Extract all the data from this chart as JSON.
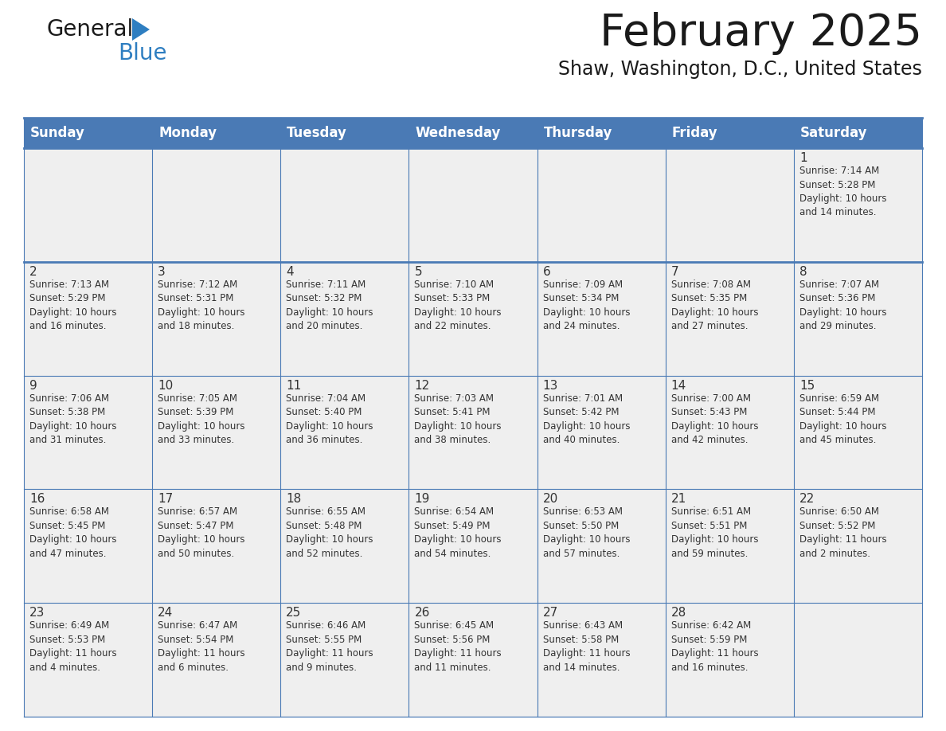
{
  "title": "February 2025",
  "subtitle": "Shaw, Washington, D.C., United States",
  "days_of_week": [
    "Sunday",
    "Monday",
    "Tuesday",
    "Wednesday",
    "Thursday",
    "Friday",
    "Saturday"
  ],
  "header_bg": "#4a7ab5",
  "header_text": "#ffffff",
  "cell_bg_gray": "#efefef",
  "cell_bg_white": "#ffffff",
  "border_color": "#4a7ab5",
  "day_num_color": "#333333",
  "text_color": "#333333",
  "title_color": "#1a1a1a",
  "logo_general_color": "#1a1a1a",
  "logo_blue_color": "#2e7ec1",
  "logo_triangle_color": "#2e7ec1",
  "calendar": [
    [
      null,
      null,
      null,
      null,
      null,
      null,
      1
    ],
    [
      2,
      3,
      4,
      5,
      6,
      7,
      8
    ],
    [
      9,
      10,
      11,
      12,
      13,
      14,
      15
    ],
    [
      16,
      17,
      18,
      19,
      20,
      21,
      22
    ],
    [
      23,
      24,
      25,
      26,
      27,
      28,
      null
    ]
  ],
  "cell_data": {
    "1": {
      "sunrise": "7:14 AM",
      "sunset": "5:28 PM",
      "daylight": "10 hours and 14 minutes."
    },
    "2": {
      "sunrise": "7:13 AM",
      "sunset": "5:29 PM",
      "daylight": "10 hours and 16 minutes."
    },
    "3": {
      "sunrise": "7:12 AM",
      "sunset": "5:31 PM",
      "daylight": "10 hours and 18 minutes."
    },
    "4": {
      "sunrise": "7:11 AM",
      "sunset": "5:32 PM",
      "daylight": "10 hours and 20 minutes."
    },
    "5": {
      "sunrise": "7:10 AM",
      "sunset": "5:33 PM",
      "daylight": "10 hours and 22 minutes."
    },
    "6": {
      "sunrise": "7:09 AM",
      "sunset": "5:34 PM",
      "daylight": "10 hours and 24 minutes."
    },
    "7": {
      "sunrise": "7:08 AM",
      "sunset": "5:35 PM",
      "daylight": "10 hours and 27 minutes."
    },
    "8": {
      "sunrise": "7:07 AM",
      "sunset": "5:36 PM",
      "daylight": "10 hours and 29 minutes."
    },
    "9": {
      "sunrise": "7:06 AM",
      "sunset": "5:38 PM",
      "daylight": "10 hours and 31 minutes."
    },
    "10": {
      "sunrise": "7:05 AM",
      "sunset": "5:39 PM",
      "daylight": "10 hours and 33 minutes."
    },
    "11": {
      "sunrise": "7:04 AM",
      "sunset": "5:40 PM",
      "daylight": "10 hours and 36 minutes."
    },
    "12": {
      "sunrise": "7:03 AM",
      "sunset": "5:41 PM",
      "daylight": "10 hours and 38 minutes."
    },
    "13": {
      "sunrise": "7:01 AM",
      "sunset": "5:42 PM",
      "daylight": "10 hours and 40 minutes."
    },
    "14": {
      "sunrise": "7:00 AM",
      "sunset": "5:43 PM",
      "daylight": "10 hours and 42 minutes."
    },
    "15": {
      "sunrise": "6:59 AM",
      "sunset": "5:44 PM",
      "daylight": "10 hours and 45 minutes."
    },
    "16": {
      "sunrise": "6:58 AM",
      "sunset": "5:45 PM",
      "daylight": "10 hours and 47 minutes."
    },
    "17": {
      "sunrise": "6:57 AM",
      "sunset": "5:47 PM",
      "daylight": "10 hours and 50 minutes."
    },
    "18": {
      "sunrise": "6:55 AM",
      "sunset": "5:48 PM",
      "daylight": "10 hours and 52 minutes."
    },
    "19": {
      "sunrise": "6:54 AM",
      "sunset": "5:49 PM",
      "daylight": "10 hours and 54 minutes."
    },
    "20": {
      "sunrise": "6:53 AM",
      "sunset": "5:50 PM",
      "daylight": "10 hours and 57 minutes."
    },
    "21": {
      "sunrise": "6:51 AM",
      "sunset": "5:51 PM",
      "daylight": "10 hours and 59 minutes."
    },
    "22": {
      "sunrise": "6:50 AM",
      "sunset": "5:52 PM",
      "daylight": "11 hours and 2 minutes."
    },
    "23": {
      "sunrise": "6:49 AM",
      "sunset": "5:53 PM",
      "daylight": "11 hours and 4 minutes."
    },
    "24": {
      "sunrise": "6:47 AM",
      "sunset": "5:54 PM",
      "daylight": "11 hours and 6 minutes."
    },
    "25": {
      "sunrise": "6:46 AM",
      "sunset": "5:55 PM",
      "daylight": "11 hours and 9 minutes."
    },
    "26": {
      "sunrise": "6:45 AM",
      "sunset": "5:56 PM",
      "daylight": "11 hours and 11 minutes."
    },
    "27": {
      "sunrise": "6:43 AM",
      "sunset": "5:58 PM",
      "daylight": "11 hours and 14 minutes."
    },
    "28": {
      "sunrise": "6:42 AM",
      "sunset": "5:59 PM",
      "daylight": "11 hours and 16 minutes."
    }
  }
}
